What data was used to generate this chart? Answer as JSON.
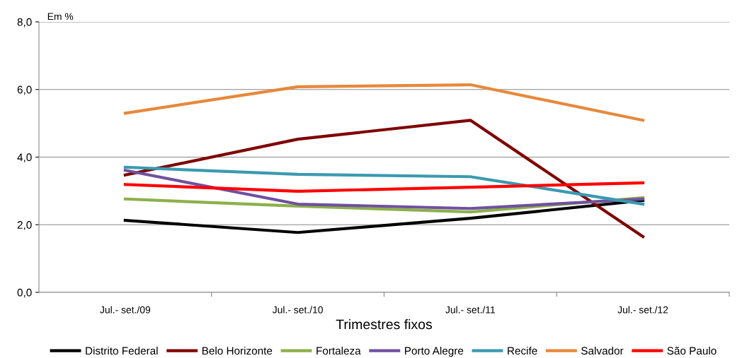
{
  "chart_data": {
    "type": "line",
    "xlabel": "Trimestres fixos",
    "ylabel": "Em %",
    "categories": [
      "Jul.- set./09",
      "Jul.- set./10",
      "Jul.- set./11",
      "Jul.- set./12"
    ],
    "series": [
      {
        "name": "Distrito Federal",
        "color": "#000000",
        "values": [
          2.13,
          1.77,
          2.19,
          2.72
        ]
      },
      {
        "name": "Belo Horizonte",
        "color": "#7f0000",
        "values": [
          3.47,
          4.53,
          5.09,
          1.65
        ]
      },
      {
        "name": "Fortaleza",
        "color": "#8db04a",
        "values": [
          2.76,
          2.55,
          2.38,
          2.8
        ]
      },
      {
        "name": "Porto Alegre",
        "color": "#7050a0",
        "values": [
          3.61,
          2.61,
          2.48,
          2.76
        ]
      },
      {
        "name": "Recife",
        "color": "#3a9ab0",
        "values": [
          3.7,
          3.49,
          3.42,
          2.61
        ]
      },
      {
        "name": "Salvador",
        "color": "#e8883a",
        "values": [
          5.3,
          6.08,
          6.14,
          5.09
        ]
      },
      {
        "name": "São Paulo",
        "color": "#ff0000",
        "values": [
          3.19,
          2.99,
          3.11,
          3.24
        ]
      }
    ],
    "ylim": [
      0,
      8
    ],
    "yticks": [
      {
        "value": 0,
        "label": "0,0"
      },
      {
        "value": 2,
        "label": "2,0"
      },
      {
        "value": 4,
        "label": "4,0"
      },
      {
        "value": 6,
        "label": "6,0"
      },
      {
        "value": 8,
        "label": "8,0"
      }
    ],
    "grid": "y",
    "legend": "bottom",
    "marker": "none",
    "line_style": "solid"
  }
}
